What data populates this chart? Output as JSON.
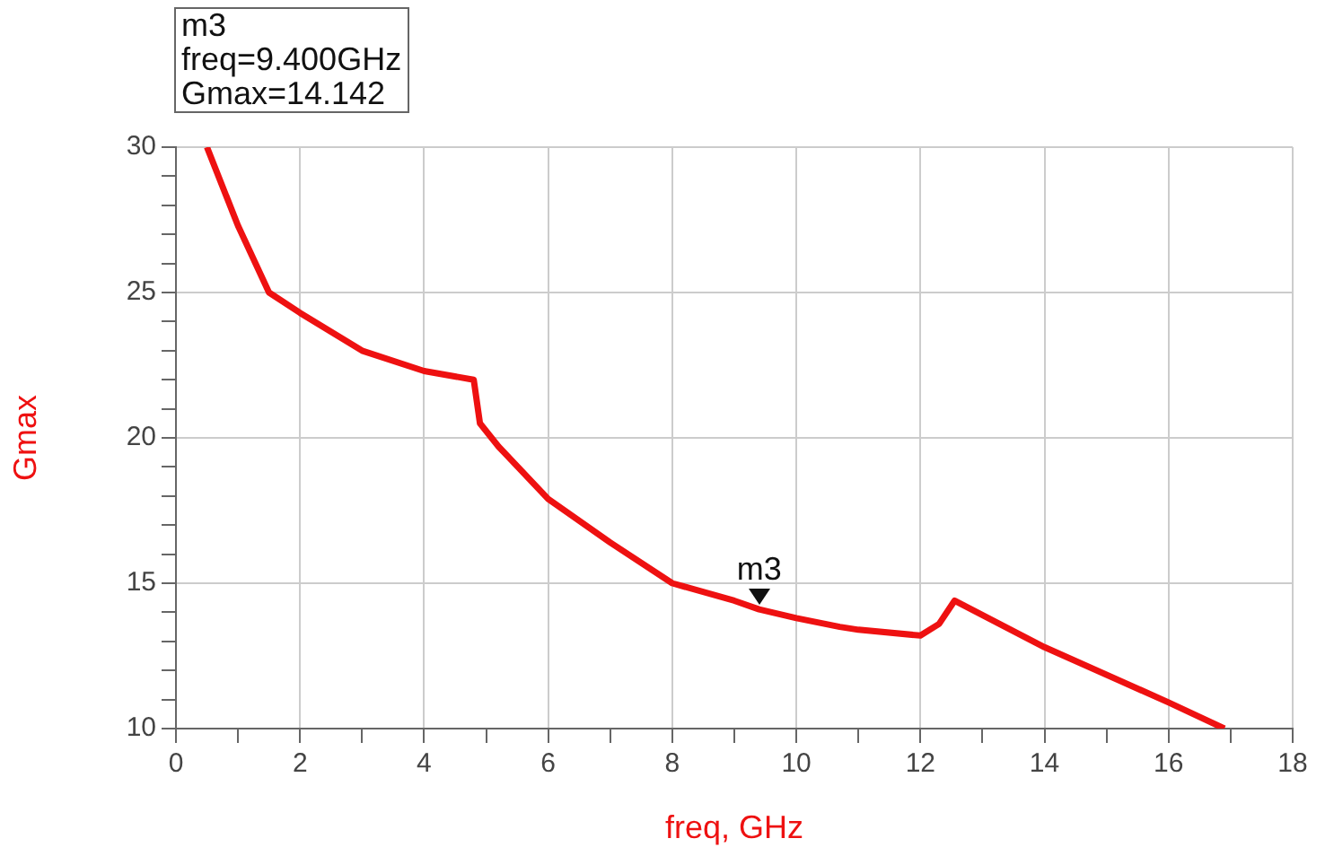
{
  "chart_data": {
    "type": "line",
    "xlabel": "freq, GHz",
    "ylabel": "Gmax",
    "annotations": [
      "m3\nfreq=9.400GHz\nGmax=14.142",
      {
        "text": "m3",
        "x": 9.4,
        "y": 14.142
      }
    ],
    "series": [
      {
        "color": "#ee1111",
        "x": [
          0.5,
          1,
          1.5,
          2,
          3,
          4,
          4.8,
          4.9,
          5.2,
          6,
          7,
          8,
          9,
          9.4,
          10,
          10.7,
          11,
          12,
          12.3,
          12.55,
          14,
          16,
          16.9
        ],
        "values": [
          30,
          27.3,
          25,
          24.3,
          23,
          22.3,
          22,
          20.5,
          19.7,
          17.9,
          16.4,
          15,
          14.4,
          14.1,
          13.8,
          13.5,
          13.4,
          13.2,
          13.6,
          14.4,
          12.8,
          10.9,
          10
        ]
      }
    ],
    "xlim": [
      0,
      18
    ],
    "xticks": [
      0,
      {
        "value": 1,
        "label": null
      },
      2,
      {
        "value": 3,
        "label": null
      },
      4,
      {
        "value": 5,
        "label": null
      },
      6,
      {
        "value": 7,
        "label": null
      },
      8,
      {
        "value": 9,
        "label": null
      },
      10,
      {
        "value": 11,
        "label": null
      },
      12,
      {
        "value": 13,
        "label": null
      },
      14,
      {
        "value": 15,
        "label": null
      },
      16,
      {
        "value": 17,
        "label": null
      },
      18
    ],
    "ylim": [
      10,
      30
    ],
    "yticks": [
      10,
      {
        "value": 11,
        "label": null
      },
      {
        "value": 12,
        "label": null
      },
      {
        "value": 13,
        "label": null
      },
      {
        "value": 14,
        "label": null
      },
      15,
      {
        "value": 16,
        "label": null
      },
      {
        "value": 17,
        "label": null
      },
      {
        "value": 18,
        "label": null
      },
      {
        "value": 19,
        "label": null
      },
      20,
      {
        "value": 21,
        "label": null
      },
      {
        "value": 22,
        "label": null
      },
      {
        "value": 23,
        "label": null
      },
      {
        "value": 24,
        "label": null
      },
      25,
      {
        "value": 26,
        "label": null
      },
      {
        "value": 27,
        "label": null
      },
      {
        "value": 28,
        "label": null
      },
      {
        "value": 29,
        "label": null
      },
      30
    ],
    "grid": true,
    "legend": false,
    "marker": "none",
    "line_style": "solid"
  }
}
